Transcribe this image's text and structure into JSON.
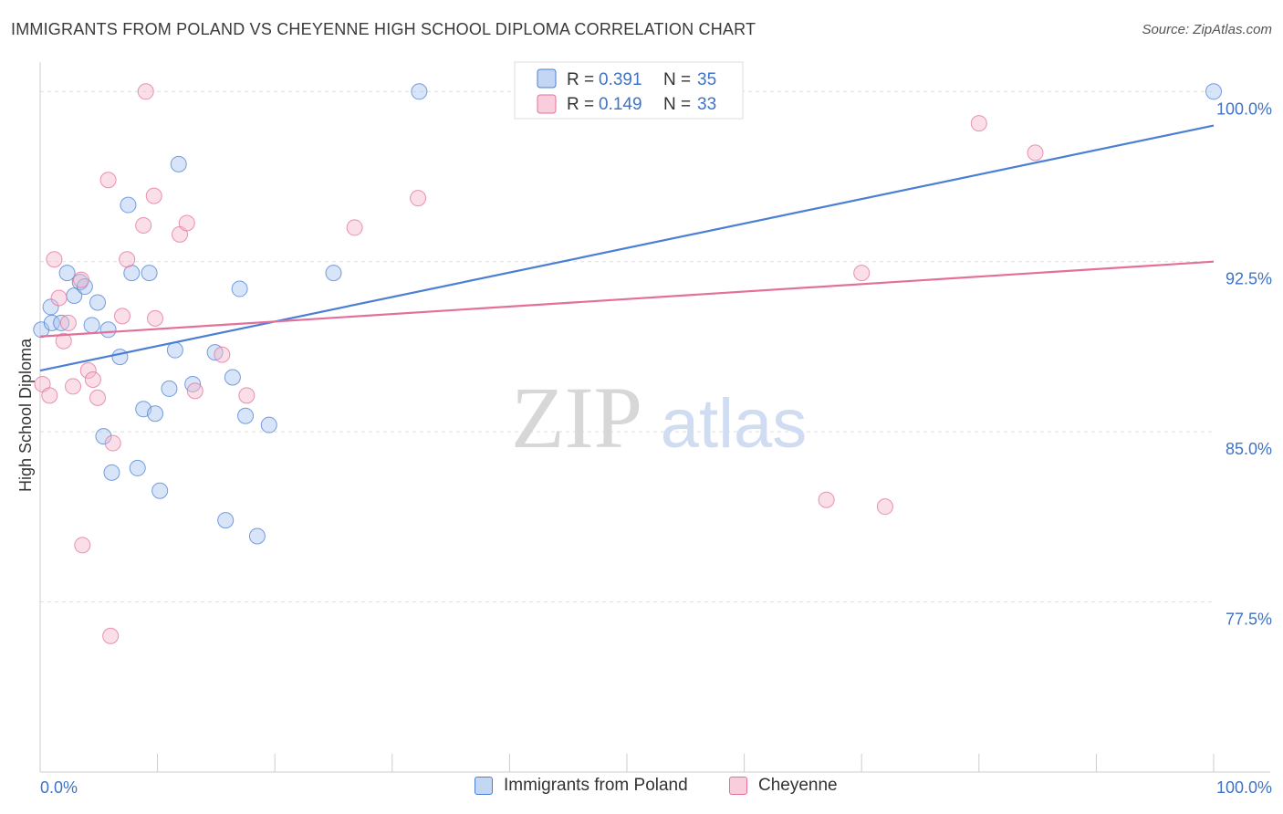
{
  "header": {
    "title": "IMMIGRANTS FROM POLAND VS CHEYENNE HIGH SCHOOL DIPLOMA CORRELATION CHART",
    "source": "Source: ZipAtlas.com"
  },
  "watermark": {
    "zip": "ZIP",
    "atlas": "atlas"
  },
  "colors": {
    "blue": "#4a7fd4",
    "blue_fill": "#a9c6ef",
    "pink": "#e3709a",
    "pink_fill": "#f5b9cd",
    "axis_label": "#3f73c6",
    "grid": "#dddddd"
  },
  "legend_top": {
    "rows": [
      {
        "r_label": "R = ",
        "r_value": "0.391",
        "n_label": "N = ",
        "n_value": "35"
      },
      {
        "r_label": "R = ",
        "r_value": "0.149",
        "n_label": "N = ",
        "n_value": "33"
      }
    ]
  },
  "chart_data": {
    "type": "scatter",
    "ylabel": "High School Diploma",
    "xlim": [
      0,
      100
    ],
    "ylim": [
      70,
      101.5
    ],
    "x_tick_labels": [
      "0.0%",
      "100.0%"
    ],
    "y_ticks": [
      77.5,
      85.0,
      92.5,
      100.0
    ],
    "y_tick_labels": [
      "77.5%",
      "85.0%",
      "92.5%",
      "100.0%"
    ],
    "grid": true,
    "legend_position": "top-center",
    "series": [
      {
        "name": "Immigrants from Poland",
        "color": "#4a7fd4",
        "trend": {
          "x": [
            0,
            100
          ],
          "y": [
            87.7,
            98.5
          ]
        },
        "points": [
          [
            0.1,
            89.5
          ],
          [
            0.9,
            90.5
          ],
          [
            1.0,
            89.8
          ],
          [
            1.8,
            89.8
          ],
          [
            2.3,
            92.0
          ],
          [
            2.9,
            91.0
          ],
          [
            3.4,
            91.6
          ],
          [
            3.8,
            91.4
          ],
          [
            4.4,
            89.7
          ],
          [
            4.9,
            90.7
          ],
          [
            5.4,
            84.8
          ],
          [
            5.8,
            89.5
          ],
          [
            6.1,
            83.2
          ],
          [
            6.8,
            88.3
          ],
          [
            7.5,
            95.0
          ],
          [
            7.8,
            92.0
          ],
          [
            8.3,
            83.4
          ],
          [
            8.8,
            86.0
          ],
          [
            9.3,
            92.0
          ],
          [
            9.8,
            85.8
          ],
          [
            10.2,
            82.4
          ],
          [
            11.0,
            86.9
          ],
          [
            11.5,
            88.6
          ],
          [
            11.8,
            96.8
          ],
          [
            13.0,
            87.1
          ],
          [
            14.9,
            88.5
          ],
          [
            15.8,
            81.1
          ],
          [
            16.4,
            87.4
          ],
          [
            17.0,
            91.3
          ],
          [
            17.5,
            85.7
          ],
          [
            18.5,
            80.4
          ],
          [
            19.5,
            85.3
          ],
          [
            25.0,
            92.0
          ],
          [
            32.3,
            100.0
          ],
          [
            100.0,
            100.0
          ]
        ]
      },
      {
        "name": "Cheyenne",
        "color": "#e3709a",
        "trend": {
          "x": [
            0,
            100
          ],
          "y": [
            89.2,
            92.5
          ]
        },
        "points": [
          [
            0.2,
            87.1
          ],
          [
            0.8,
            86.6
          ],
          [
            1.2,
            92.6
          ],
          [
            1.6,
            90.9
          ],
          [
            2.0,
            89.0
          ],
          [
            2.4,
            89.8
          ],
          [
            2.8,
            87.0
          ],
          [
            3.5,
            91.7
          ],
          [
            3.6,
            80.0
          ],
          [
            4.1,
            87.7
          ],
          [
            4.5,
            87.3
          ],
          [
            4.9,
            86.5
          ],
          [
            5.8,
            96.1
          ],
          [
            6.0,
            76.0
          ],
          [
            6.2,
            84.5
          ],
          [
            7.0,
            90.1
          ],
          [
            7.4,
            92.6
          ],
          [
            8.8,
            94.1
          ],
          [
            9.0,
            100.0
          ],
          [
            9.7,
            95.4
          ],
          [
            9.8,
            90.0
          ],
          [
            11.9,
            93.7
          ],
          [
            12.5,
            94.2
          ],
          [
            13.2,
            86.8
          ],
          [
            15.5,
            88.4
          ],
          [
            17.6,
            86.6
          ],
          [
            26.8,
            94.0
          ],
          [
            32.2,
            95.3
          ],
          [
            67.0,
            82.0
          ],
          [
            70.0,
            92.0
          ],
          [
            72.0,
            81.7
          ],
          [
            80.0,
            98.6
          ],
          [
            84.8,
            97.3
          ]
        ]
      }
    ]
  }
}
